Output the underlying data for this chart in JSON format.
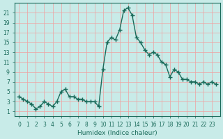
{
  "xlabel": "Humidex (Indice chaleur)",
  "ylabel": "",
  "background_color": "#c8ebe8",
  "grid_color": "#f0a0a0",
  "line_color": "#1a6b5a",
  "x_values": [
    0,
    0.5,
    1,
    1.5,
    2,
    2.5,
    3,
    3.5,
    4,
    4.5,
    5,
    5.5,
    6,
    6.5,
    7,
    7.5,
    8,
    8.5,
    9,
    9.5,
    10,
    10.5,
    11,
    11.5,
    12,
    12.5,
    13,
    13.5,
    14,
    14.5,
    15,
    15.5,
    16,
    16.5,
    17,
    17.5,
    18,
    18.5,
    19,
    19.5,
    20,
    20.5,
    21,
    21.5,
    22,
    22.5,
    23,
    23.5
  ],
  "y_values": [
    4,
    3.5,
    3,
    2.5,
    1.5,
    2,
    3,
    2.5,
    2,
    3,
    5,
    5.5,
    4,
    4,
    3.5,
    3.5,
    3,
    3,
    3,
    2,
    9.5,
    15,
    16,
    15.5,
    17.5,
    21.5,
    22,
    20.5,
    16,
    15,
    13.5,
    12.5,
    13,
    12.5,
    11,
    10.5,
    8,
    9.5,
    9,
    7.5,
    7.5,
    7,
    7,
    6.5,
    7,
    6.5,
    7,
    6.5
  ],
  "yticks": [
    1,
    3,
    5,
    7,
    9,
    11,
    13,
    15,
    17,
    19,
    21
  ],
  "xticks": [
    0,
    1,
    2,
    3,
    4,
    5,
    6,
    7,
    8,
    9,
    10,
    11,
    12,
    13,
    14,
    15,
    16,
    17,
    18,
    19,
    20,
    21,
    22,
    23
  ],
  "xlim": [
    -0.5,
    24
  ],
  "ylim": [
    0,
    23
  ],
  "marker": "+",
  "marker_size": 4,
  "linewidth": 1.0
}
